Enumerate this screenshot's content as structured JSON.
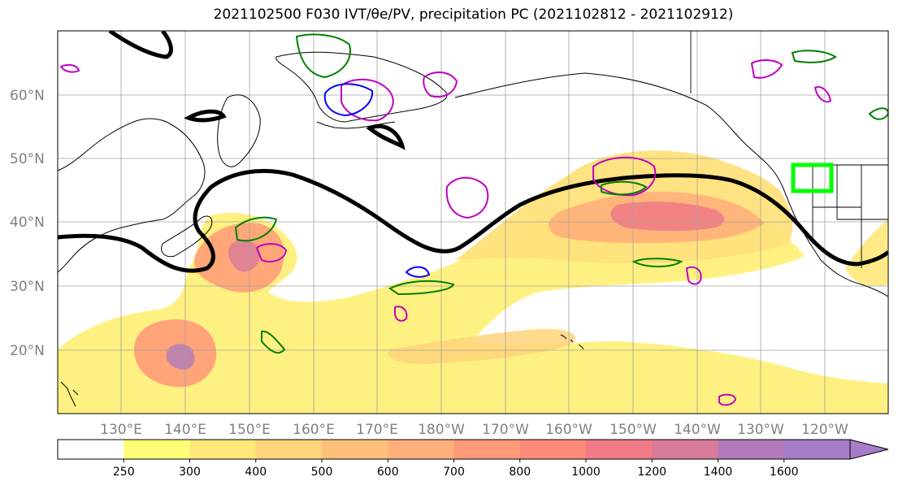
{
  "title": "2021102500 F030 IVT/θe/PV, precipitation PC (2021102812 - 2021102912)",
  "map": {
    "lat_labels": [
      "60°N",
      "50°N",
      "40°N",
      "30°N",
      "20°N"
    ],
    "lon_labels": [
      "130°E",
      "140°E",
      "150°E",
      "160°E",
      "170°E",
      "180°W",
      "170°W",
      "160°W",
      "150°W",
      "140°W",
      "130°W",
      "120°W"
    ],
    "highlight_box_color": "#00ff00",
    "theta_e_contour_color": "#000000",
    "pv_contour_colors": [
      "#008000",
      "#0000ff",
      "#c000c0"
    ]
  },
  "colorbar": {
    "levels": [
      "250",
      "300",
      "400",
      "500",
      "600",
      "700",
      "800",
      "1000",
      "1200",
      "1400",
      "1600"
    ],
    "colors": [
      "#ffffff",
      "#ffff77",
      "#ffe87a",
      "#ffd47a",
      "#ffc07a",
      "#ffb07a",
      "#ff9a78",
      "#ff8a7a",
      "#f07a86",
      "#d87a9a",
      "#b07ab8",
      "#a67cc8"
    ],
    "extend": "max"
  }
}
